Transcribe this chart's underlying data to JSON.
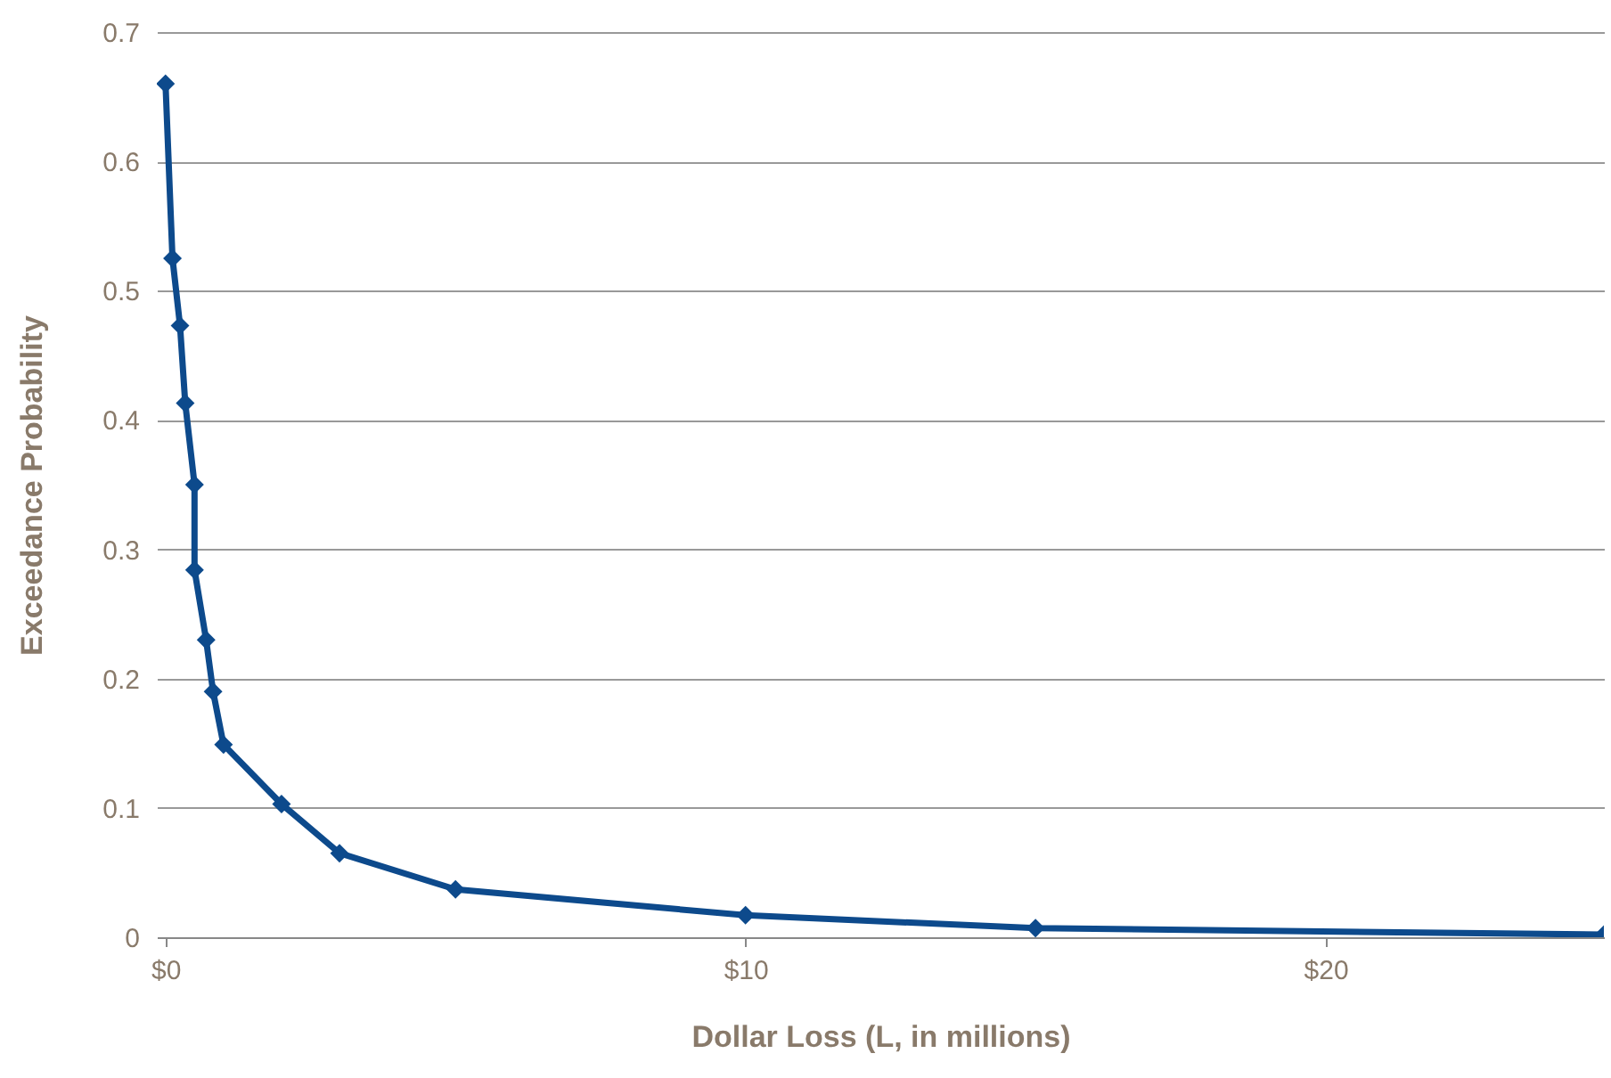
{
  "chart_data": {
    "type": "line",
    "xlabel": "Dollar Loss (L, in millions)",
    "ylabel": "Exceedance Probability",
    "x": [
      0,
      0.12,
      0.25,
      0.34,
      0.5,
      0.5,
      0.7,
      0.82,
      1,
      2,
      3,
      5,
      10,
      15,
      24.8
    ],
    "series": [
      {
        "color": "#0d4a8c",
        "values": [
          0.66,
          0.525,
          0.473,
          0.413,
          0.35,
          0.284,
          0.23,
          0.19,
          0.149,
          0.103,
          0.065,
          0.037,
          0.017,
          0.007,
          0.002
        ]
      }
    ],
    "xlim": [
      -0.15,
      24.8
    ],
    "xticks": [
      {
        "value": 0,
        "label": "$0"
      },
      {
        "value": 10,
        "label": "$10"
      },
      {
        "value": 20,
        "label": "$20"
      }
    ],
    "ylim": [
      0,
      0.7
    ],
    "yticks": [
      0,
      0.1,
      0.2,
      0.3,
      0.4,
      0.5,
      0.6,
      0.7
    ],
    "grid": "y",
    "marker": "diamond",
    "line_style": "solid"
  }
}
